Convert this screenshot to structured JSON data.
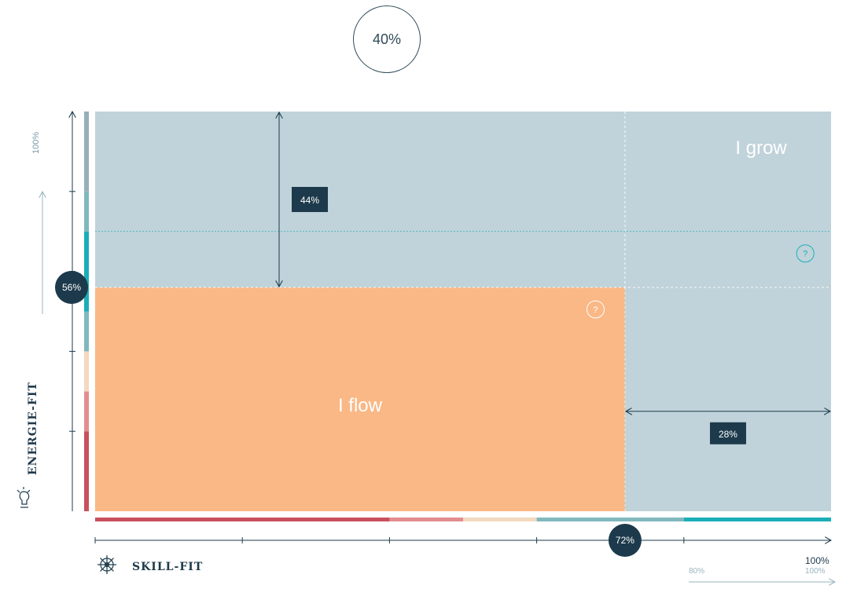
{
  "top_badge": "40%",
  "chart_data": {
    "type": "area",
    "x_axis": {
      "label": "SKILL-FIT",
      "end_label": "100%",
      "range": [
        0,
        100
      ],
      "ticks": [
        20,
        40,
        60,
        80
      ]
    },
    "y_axis": {
      "label": "ENERGIE-FIT",
      "end_label": "100%",
      "range": [
        0,
        100
      ],
      "ticks": [
        20,
        40,
        60,
        80
      ]
    },
    "x_value": 72,
    "y_value": 56,
    "x_marker_label": "72%",
    "y_marker_label": "56%",
    "zones": [
      {
        "name": "I flow",
        "x": [
          0,
          72
        ],
        "y": [
          0,
          56
        ],
        "color": "#f9b886"
      },
      {
        "name": "I grow",
        "x": [
          0,
          100
        ],
        "y": [
          0,
          100
        ],
        "color": "#c0d3da"
      }
    ],
    "annotations": [
      {
        "label": "44%",
        "axis": "y",
        "from": 56,
        "to": 100
      },
      {
        "label": "28%",
        "axis": "x",
        "from": 72,
        "to": 100
      }
    ],
    "reference_lines": {
      "x": 72,
      "y": 70
    },
    "help_icons": [
      "?",
      "?"
    ],
    "x_color_bar": [
      {
        "to": 40,
        "color": "#c8505e"
      },
      {
        "to": 50,
        "color": "#e38d8f"
      },
      {
        "to": 60,
        "color": "#f3d9bf"
      },
      {
        "to": 80,
        "color": "#7fb8bd"
      },
      {
        "to": 100,
        "color": "#1aaeb9"
      }
    ],
    "y_color_bar": [
      {
        "to": 20,
        "color": "#c8505e"
      },
      {
        "to": 30,
        "color": "#e38d8f"
      },
      {
        "to": 40,
        "color": "#f3d9bf"
      },
      {
        "to": 50,
        "color": "#7fb8bd"
      },
      {
        "to": 70,
        "color": "#1aaeb9"
      },
      {
        "to": 80,
        "color": "#7fb8bd"
      },
      {
        "to": 100,
        "color": "#96b0ba"
      }
    ],
    "sub_scale": {
      "start": "80%",
      "end": "100%"
    }
  },
  "colors": {
    "dark": "#1c3a4b",
    "teal": "#1aaeb9"
  }
}
